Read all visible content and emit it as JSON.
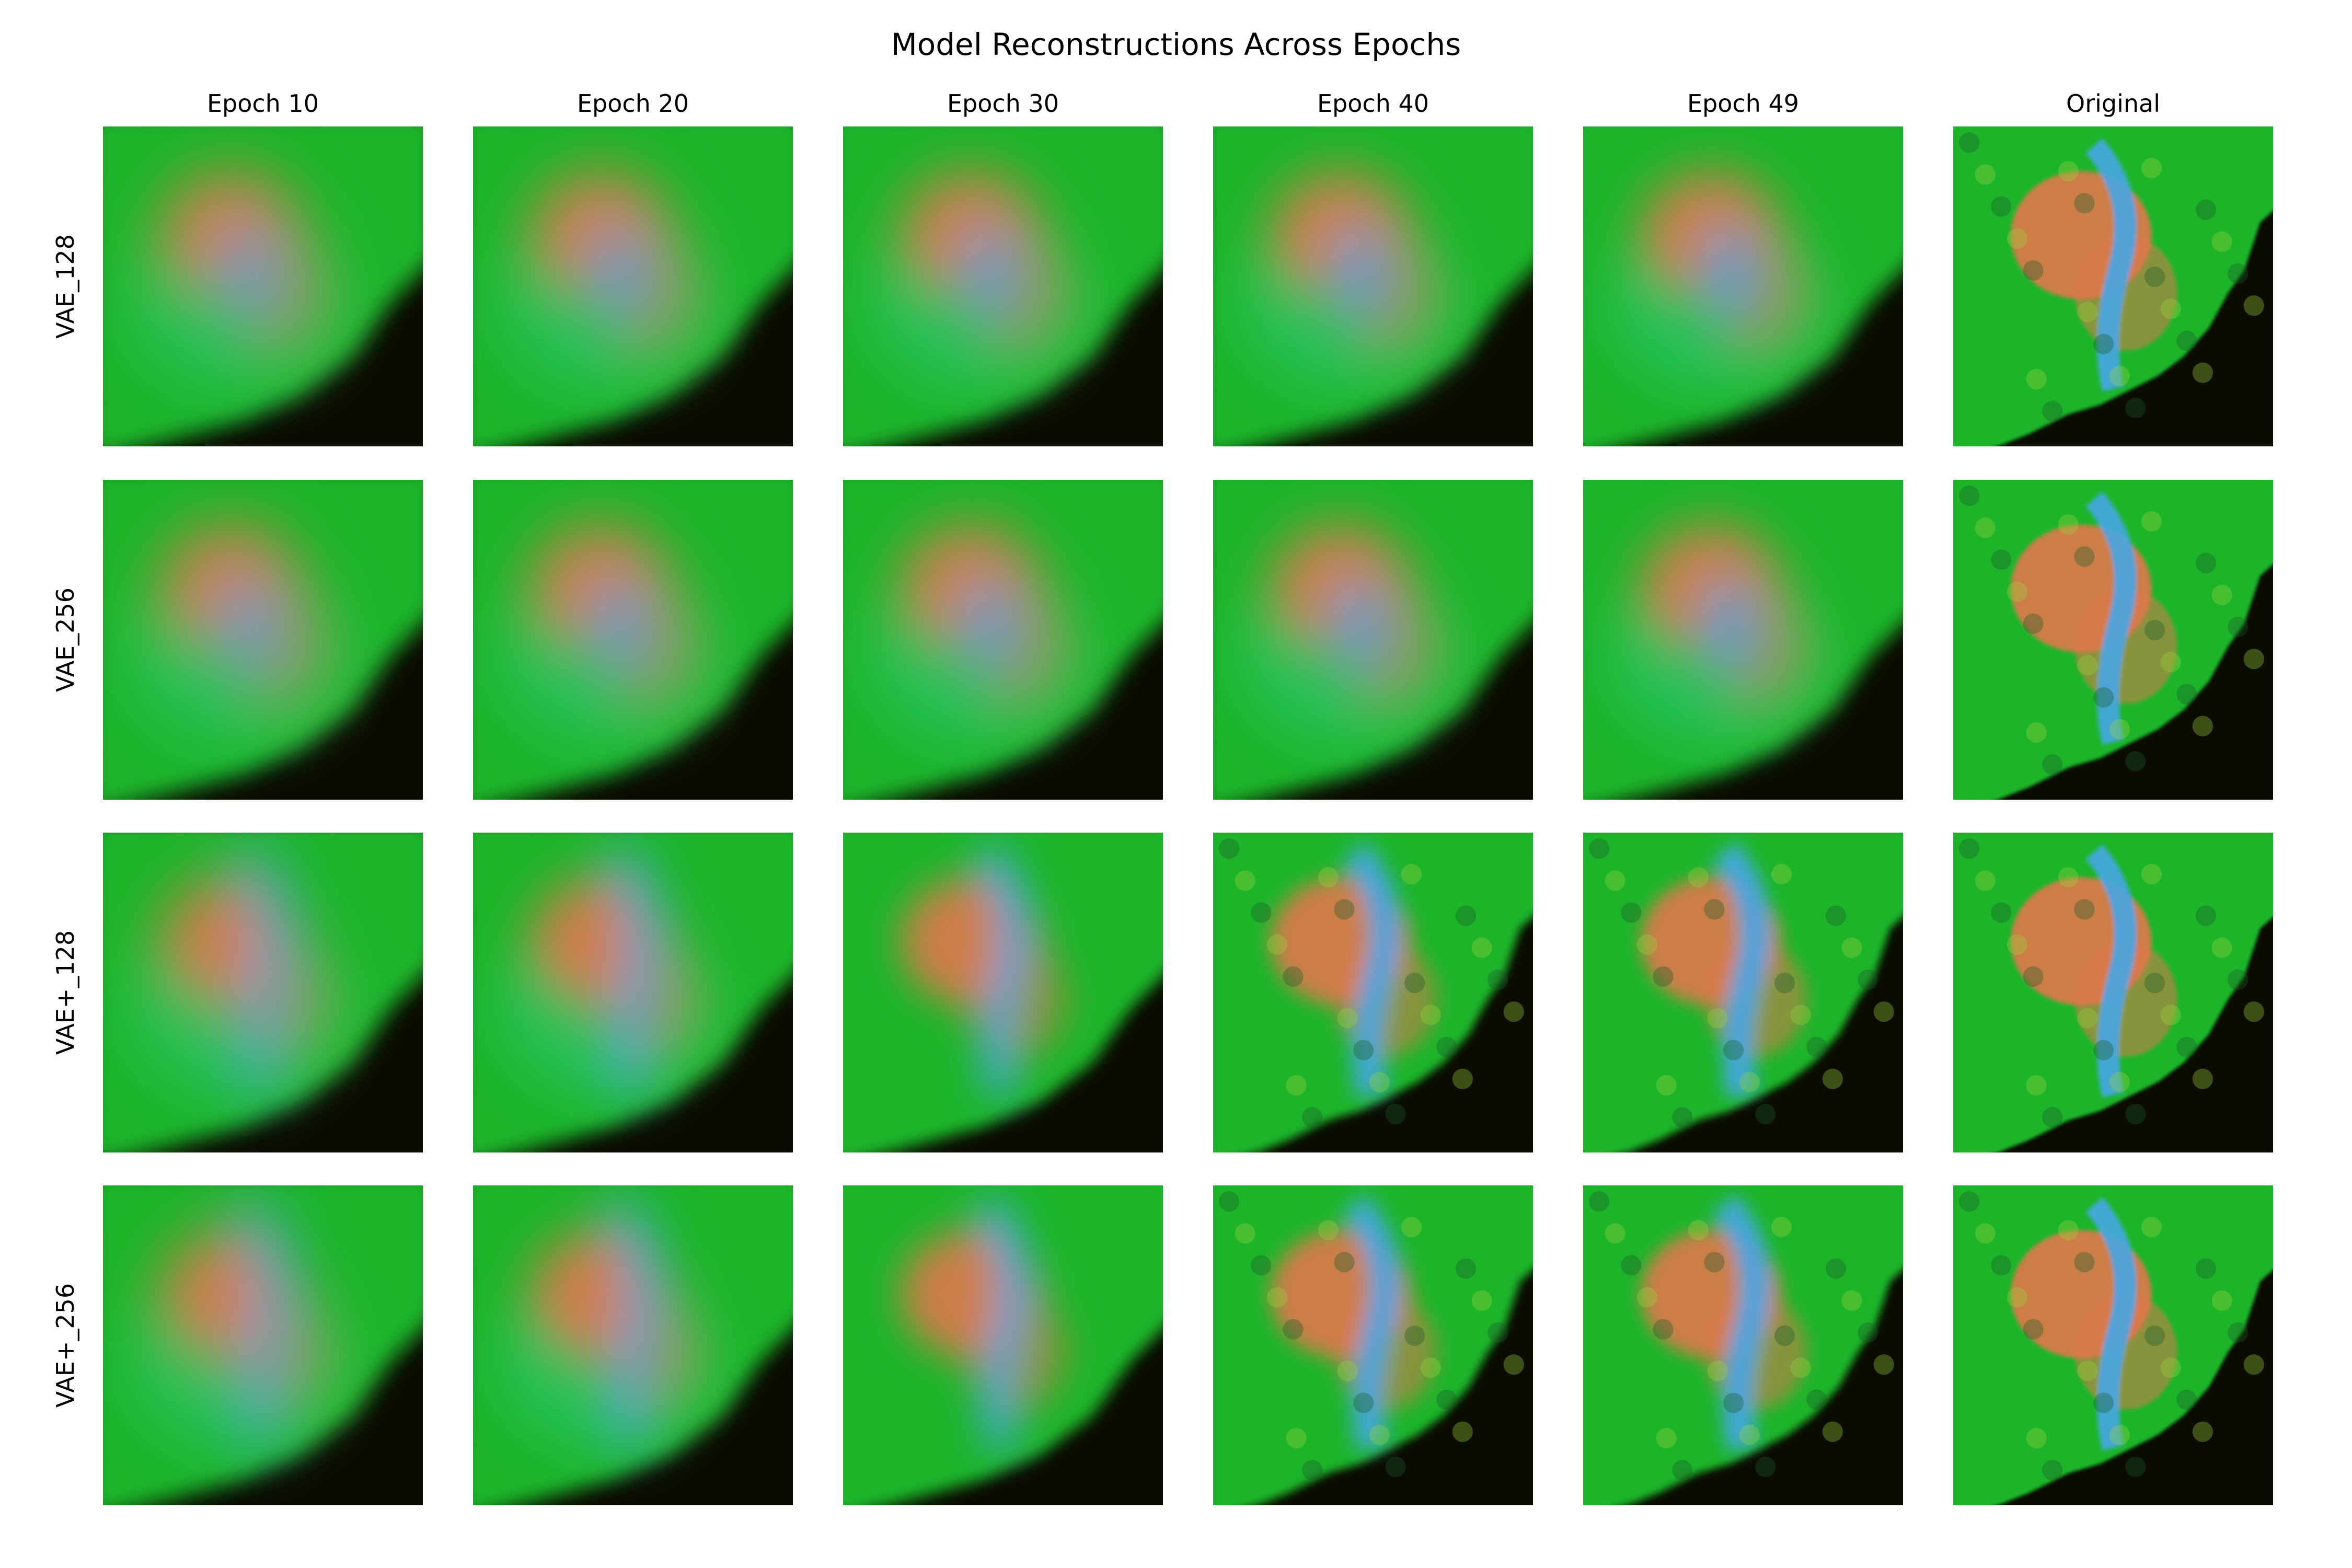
{
  "figure": {
    "title": "Model Reconstructions Across Epochs",
    "columns": [
      "Epoch 10",
      "Epoch 20",
      "Epoch 30",
      "Epoch 40",
      "Epoch 49",
      "Original"
    ],
    "rows": [
      "VAE_128",
      "VAE_256",
      "VAE+_128",
      "VAE+_256"
    ]
  },
  "palette": {
    "membrane_green": "#1fb52a",
    "nucleus_orange": "#e0784a",
    "nucleus_blue": "#46a6e6",
    "cyan_tint": "#35d3a6",
    "background_dark": "#0b0b00"
  }
}
